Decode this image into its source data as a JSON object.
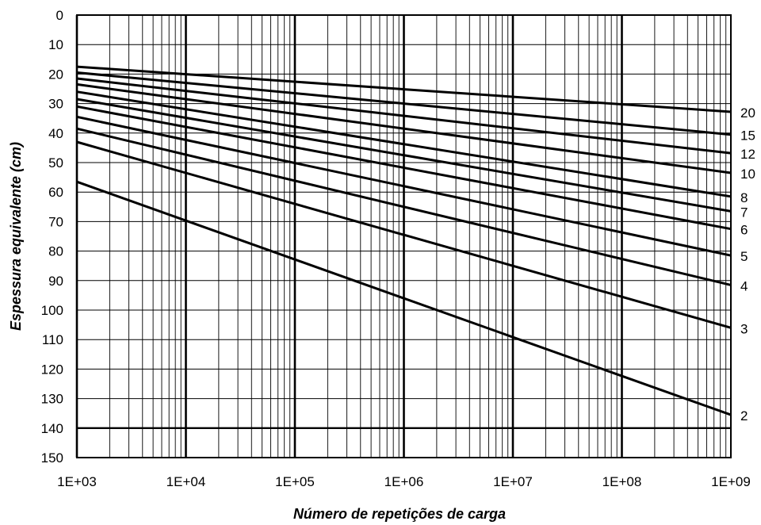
{
  "chart_data": {
    "type": "line",
    "title": "",
    "xlabel": "Número de repetições de carga",
    "ylabel": "Espessura equivalente (cm)",
    "x_scale": "log",
    "xlim": [
      1000,
      1000000000
    ],
    "ylim": [
      0,
      150
    ],
    "y_inverted": true,
    "grid": true,
    "x_ticks": [
      1000,
      10000,
      100000,
      1000000,
      10000000,
      100000000,
      1000000000
    ],
    "x_tick_labels": [
      "1E+03",
      "1E+04",
      "1E+05",
      "1E+06",
      "1E+07",
      "1E+08",
      "1E+09"
    ],
    "y_ticks": [
      0,
      10,
      20,
      30,
      40,
      50,
      60,
      70,
      80,
      90,
      100,
      110,
      120,
      130,
      140,
      150
    ],
    "y_tick_labels": [
      "0",
      "10",
      "20",
      "30",
      "40",
      "50",
      "60",
      "70",
      "80",
      "90",
      "100",
      "110",
      "120",
      "130",
      "140",
      "150"
    ],
    "reference_line_y": 140,
    "line_color": "#000000",
    "series": [
      {
        "name": "20",
        "x": [
          1000,
          1000000000
        ],
        "y": [
          17.5,
          32.8
        ]
      },
      {
        "name": "15",
        "x": [
          1000,
          1000000000
        ],
        "y": [
          19.5,
          40.5
        ]
      },
      {
        "name": "12",
        "x": [
          1000,
          1000000000
        ],
        "y": [
          21.5,
          46.8
        ]
      },
      {
        "name": "10",
        "x": [
          1000,
          1000000000
        ],
        "y": [
          23.5,
          53.5
        ]
      },
      {
        "name": "8",
        "x": [
          1000,
          1000000000
        ],
        "y": [
          26.0,
          61.5
        ]
      },
      {
        "name": "7",
        "x": [
          1000,
          1000000000
        ],
        "y": [
          28.5,
          66.5
        ]
      },
      {
        "name": "6",
        "x": [
          1000,
          1000000000
        ],
        "y": [
          31.0,
          72.5
        ]
      },
      {
        "name": "5",
        "x": [
          1000,
          1000000000
        ],
        "y": [
          34.5,
          81.5
        ]
      },
      {
        "name": "4",
        "x": [
          1000,
          1000000000
        ],
        "y": [
          38.5,
          91.5
        ]
      },
      {
        "name": "3",
        "x": [
          1000,
          1000000000
        ],
        "y": [
          43.0,
          106.0
        ]
      },
      {
        "name": "2",
        "x": [
          1000,
          1000000000
        ],
        "y": [
          56.5,
          135.5
        ]
      }
    ]
  }
}
